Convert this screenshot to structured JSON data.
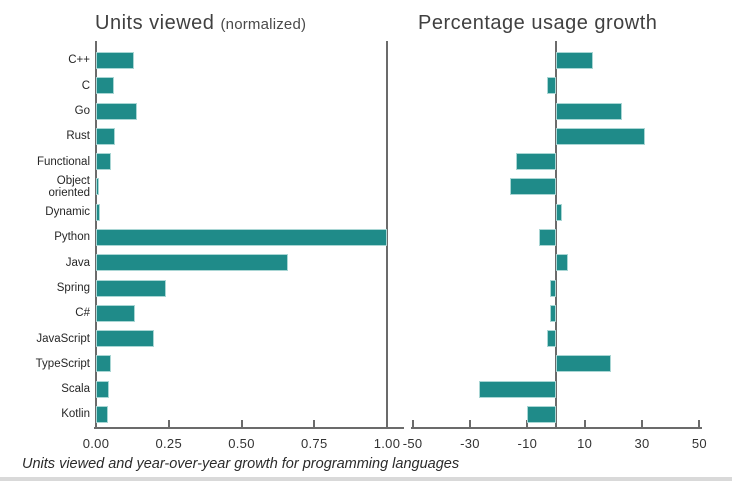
{
  "page": {
    "caption": "Units viewed and year-over-year growth for programming languages"
  },
  "colors": {
    "bar": "#1f8b89",
    "bar_edge": "#a9d6d4",
    "axis": "#6b6b6b",
    "title_text": "#404040",
    "label_text": "#262626",
    "bottom_strip": "#d9d9d9"
  },
  "chart_data": [
    {
      "type": "bar",
      "orientation": "horizontal",
      "title": "Units viewed",
      "title_suffix": "(normalized)",
      "categories": [
        "C++",
        "C",
        "Go",
        "Rust",
        "Functional",
        "Object oriented",
        "Dynamic",
        "Python",
        "Java",
        "Spring",
        "C#",
        "JavaScript",
        "TypeScript",
        "Scala",
        "Kotlin"
      ],
      "values": [
        0.13,
        0.06,
        0.14,
        0.065,
        0.05,
        0.01,
        0.015,
        1.0,
        0.66,
        0.24,
        0.135,
        0.2,
        0.05,
        0.045,
        0.04
      ],
      "xlabel": "",
      "ylabel": "",
      "xlim": [
        0,
        1.0
      ],
      "xticks": [
        0,
        0.25,
        0.5,
        0.75,
        1.0
      ],
      "xtick_labels": [
        "0.00",
        "0.25",
        "0.50",
        "0.75",
        "1.00"
      ],
      "grid": false,
      "legend": false
    },
    {
      "type": "bar",
      "orientation": "horizontal",
      "title": "Percentage usage growth",
      "title_suffix": "",
      "categories": [
        "C++",
        "C",
        "Go",
        "Rust",
        "Functional",
        "Object oriented",
        "Dynamic",
        "Python",
        "Java",
        "Spring",
        "C#",
        "JavaScript",
        "TypeScript",
        "Scala",
        "Kotlin"
      ],
      "values": [
        13,
        -3,
        23,
        31,
        -14,
        -16,
        2,
        -6,
        4,
        -2,
        -2,
        -3,
        19,
        -27,
        -10
      ],
      "xlabel": "",
      "ylabel": "",
      "xlim": [
        -50,
        50
      ],
      "xticks": [
        -50,
        -30,
        -10,
        10,
        30,
        50
      ],
      "xtick_labels": [
        "-50",
        "-30",
        "-10",
        "10",
        "30",
        "50"
      ],
      "grid": false,
      "legend": false
    }
  ]
}
